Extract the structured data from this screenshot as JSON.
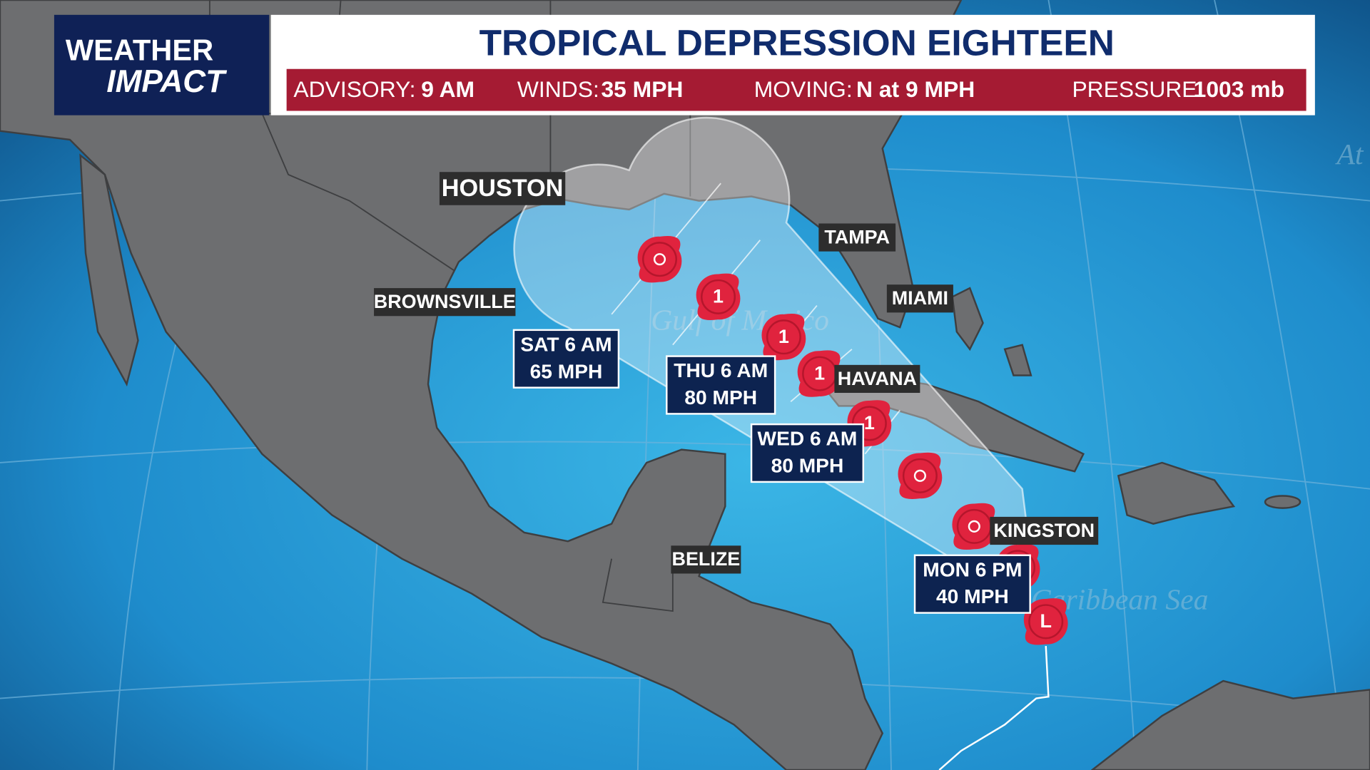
{
  "logo": {
    "line1": "WEATHER",
    "line2": "IMPACT"
  },
  "header": {
    "title": "TROPICAL DEPRESSION EIGHTEEN",
    "items": [
      {
        "label": "ADVISORY:",
        "value": "9 AM"
      },
      {
        "label": "WINDS:",
        "value": "35 MPH"
      },
      {
        "label": "MOVING:",
        "value": "N at 9 MPH"
      },
      {
        "label": "PRESSURE:",
        "value": "1003 mb"
      }
    ]
  },
  "cities": [
    "HOUSTON",
    "TAMPA",
    "MIAMI",
    "BROWNSVILLE",
    "HAVANA",
    "KINGSTON",
    "BELIZE"
  ],
  "forecast_labels": [
    {
      "time": "SAT 6 AM",
      "wind": "65 MPH"
    },
    {
      "time": "THU 6 AM",
      "wind": "80 MPH"
    },
    {
      "time": "WED 6 AM",
      "wind": "80 MPH"
    },
    {
      "time": "MON 6 PM",
      "wind": "40 MPH"
    }
  ],
  "storm_markers": [
    "1",
    "1",
    "1",
    "1",
    "L"
  ],
  "map_labels": [
    "Gulf of Mexico",
    "Caribbean Sea",
    "At"
  ]
}
